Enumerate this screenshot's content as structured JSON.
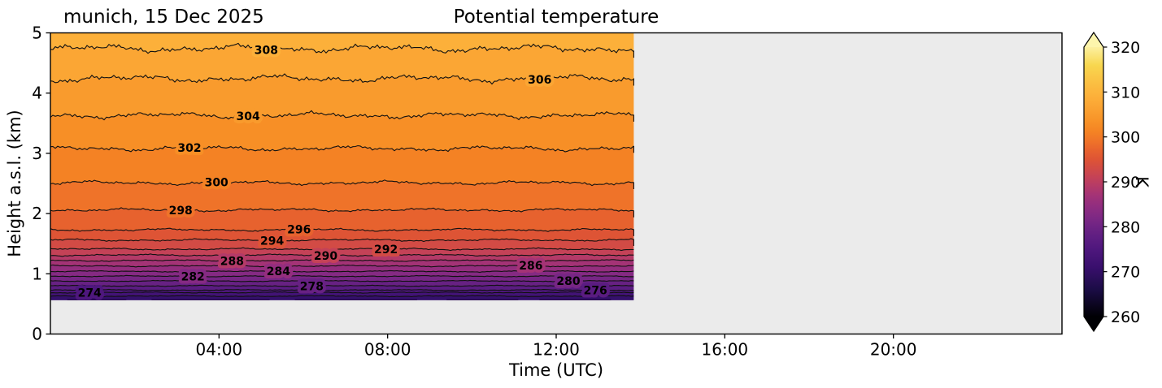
{
  "figure": {
    "background": "#ffffff",
    "axes_background": "#ebebeb"
  },
  "chart_data": {
    "type": "heatmap",
    "subtype": "filled_contour_time_height",
    "title": "Potential temperature",
    "annotation": "munich, 15 Dec 2025",
    "xlabel": "Time (UTC)",
    "ylabel": "Height a.s.l. (km)",
    "x_axis": {
      "unit": "hours UTC",
      "range": [
        0,
        24
      ],
      "ticks": [
        {
          "hour": 4,
          "label": "04:00"
        },
        {
          "hour": 8,
          "label": "08:00"
        },
        {
          "hour": 12,
          "label": "12:00"
        },
        {
          "hour": 16,
          "label": "16:00"
        },
        {
          "hour": 20,
          "label": "20:00"
        }
      ]
    },
    "y_axis": {
      "range": [
        0,
        5
      ],
      "ticks": [
        0,
        1,
        2,
        3,
        4,
        5
      ]
    },
    "data_extent": {
      "start_hour": 0,
      "end_hour": 13.84,
      "bottom_km": 0.56,
      "top_km": 5.0
    },
    "colorbar": {
      "label": "K",
      "min": 260,
      "max": 320,
      "ticks": [
        260,
        270,
        280,
        290,
        300,
        310,
        320
      ],
      "extend": "both",
      "over_color": "#fdf5ac",
      "under_color": "#000004",
      "gradient": [
        [
          260,
          "#000004"
        ],
        [
          266,
          "#1b0c45"
        ],
        [
          271,
          "#390f6d"
        ],
        [
          275,
          "#4e177d"
        ],
        [
          277,
          "#5a1c81"
        ],
        [
          279,
          "#672183"
        ],
        [
          281,
          "#762684"
        ],
        [
          283,
          "#852a83"
        ],
        [
          285,
          "#942e7e"
        ],
        [
          287,
          "#a43376"
        ],
        [
          289,
          "#b43a68"
        ],
        [
          291,
          "#c44257"
        ],
        [
          293,
          "#d24b45"
        ],
        [
          295,
          "#de5435"
        ],
        [
          297,
          "#e7622e"
        ],
        [
          299,
          "#ef7329"
        ],
        [
          301,
          "#f48224"
        ],
        [
          303,
          "#f78f26"
        ],
        [
          305,
          "#f99b2d"
        ],
        [
          307,
          "#fba634"
        ],
        [
          309,
          "#fcb03a"
        ],
        [
          312,
          "#fbbf42"
        ],
        [
          316,
          "#f8d74f"
        ],
        [
          320,
          "#fcf0a0"
        ]
      ]
    },
    "contours": {
      "unit": "K",
      "interval": 2,
      "line_color": "#111111",
      "below_min_color": "#34106b",
      "levels": [
        {
          "value": 308,
          "height_km": 4.74,
          "label": "308",
          "label_hour": 5.12,
          "band_above_color": "#fcb03a"
        },
        {
          "value": 306,
          "height_km": 4.24,
          "label": "306",
          "label_hour": 11.61,
          "band_above_color": "#fba634"
        },
        {
          "value": 304,
          "height_km": 3.63,
          "label": "304",
          "label_hour": 4.69,
          "band_above_color": "#f99b2d"
        },
        {
          "value": 302,
          "height_km": 3.08,
          "label": "302",
          "label_hour": 3.3,
          "band_above_color": "#f78f26"
        },
        {
          "value": 300,
          "height_km": 2.51,
          "label": "300",
          "label_hour": 3.94,
          "band_above_color": "#f48224"
        },
        {
          "value": 298,
          "height_km": 2.06,
          "label": "298",
          "label_hour": 3.09,
          "band_above_color": "#ef7329"
        },
        {
          "value": 296,
          "height_km": 1.73,
          "label": "296",
          "label_hour": 5.9,
          "band_above_color": "#e7622e"
        },
        {
          "value": 294,
          "height_km": 1.56,
          "label": "294",
          "label_hour": 5.26,
          "band_above_color": "#de5435"
        },
        {
          "value": 292,
          "height_km": 1.41,
          "label": "292",
          "label_hour": 7.96,
          "band_above_color": "#d24b45"
        },
        {
          "value": 290,
          "height_km": 1.31,
          "label": "290",
          "label_hour": 6.53,
          "band_above_color": "#c44257"
        },
        {
          "value": 288,
          "height_km": 1.22,
          "label": "288",
          "label_hour": 4.31,
          "band_above_color": "#b43a68"
        },
        {
          "value": 286,
          "height_km": 1.13,
          "label": "286",
          "label_hour": 11.4,
          "band_above_color": "#a43376"
        },
        {
          "value": 284,
          "height_km": 1.04,
          "label": "284",
          "label_hour": 5.41,
          "band_above_color": "#942e7e"
        },
        {
          "value": 282,
          "height_km": 0.96,
          "label": "282",
          "label_hour": 3.38,
          "band_above_color": "#852a83"
        },
        {
          "value": 280,
          "height_km": 0.88,
          "label": "280",
          "label_hour": 12.29,
          "band_above_color": "#762684"
        },
        {
          "value": 278,
          "height_km": 0.8,
          "label": "278",
          "label_hour": 6.2,
          "band_above_color": "#672183"
        },
        {
          "value": 276,
          "height_km": 0.73,
          "label": "276",
          "label_hour": 12.93,
          "band_above_color": "#5a1c81"
        },
        {
          "value": 274,
          "height_km": 0.69,
          "label": "274",
          "label_hour": 0.93,
          "band_above_color": "#4e177d"
        },
        {
          "value": 272,
          "height_km": 0.63,
          "label": null,
          "label_hour": null,
          "band_above_color": "#421376"
        }
      ]
    }
  }
}
